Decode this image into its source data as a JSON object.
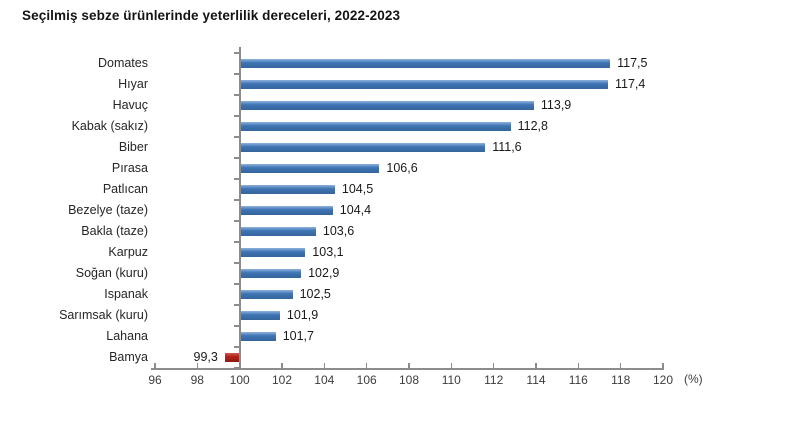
{
  "chart_data": {
    "type": "bar",
    "orientation": "horizontal",
    "title": "Seçilmiş sebze ürünlerinde yeterlilik dereceleri, 2022-2023",
    "unit_label": "(%)",
    "categories": [
      "Domates",
      "Hıyar",
      "Havuç",
      "Kabak (sakız)",
      "Biber",
      "Pırasa",
      "Patlıcan",
      "Bezelye (taze)",
      "Bakla (taze)",
      "Karpuz",
      "Soğan (kuru)",
      "Ispanak",
      "Sarımsak (kuru)",
      "Lahana",
      "Bamya"
    ],
    "values": [
      117.5,
      117.4,
      113.9,
      112.8,
      111.6,
      106.6,
      104.5,
      104.4,
      103.6,
      103.1,
      102.9,
      102.5,
      101.9,
      101.7,
      99.3
    ],
    "value_labels": [
      "117,5",
      "117,4",
      "113,9",
      "112,8",
      "111,6",
      "106,6",
      "104,5",
      "104,4",
      "103,6",
      "103,1",
      "102,9",
      "102,5",
      "101,9",
      "101,7",
      "99,3"
    ],
    "baseline": 100,
    "xlim": [
      96,
      120
    ],
    "x_ticks": [
      96,
      98,
      100,
      102,
      104,
      106,
      108,
      110,
      112,
      114,
      116,
      118,
      120
    ],
    "x_tick_labels": [
      "96",
      "98",
      "100",
      "102",
      "104",
      "106",
      "108",
      "110",
      "112",
      "114",
      "116",
      "118",
      "120"
    ],
    "legend": "none",
    "grid": "off",
    "colors": {
      "bar_blue": "#3e74b4",
      "bar_blue_light": "#8fb2dc",
      "bar_blue_dark": "#35649c",
      "bar_red": "#b02119",
      "bar_red_light": "#cd5a50",
      "bar_red_dark": "#8f1a14",
      "axis": "#8c8c8c",
      "text": "#262626"
    }
  }
}
